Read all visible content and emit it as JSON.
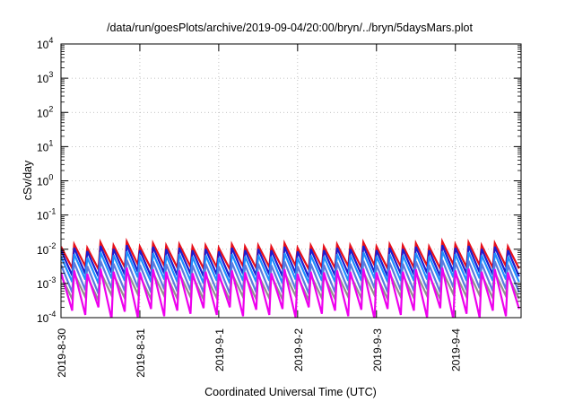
{
  "chart_data": {
    "type": "line",
    "title": "/data/run/goesPlots/archive/2019-09-04/20:00/bryn/../bryn/5daysMars.plot",
    "xlabel": "Coordinated Universal Time (UTC)",
    "ylabel": "cSv/day",
    "yscale": "log",
    "ylim": [
      0.0001,
      10000
    ],
    "y_ticks": [
      {
        "base": "10",
        "exp": "-4",
        "value": 0.0001
      },
      {
        "base": "10",
        "exp": "-3",
        "value": 0.001
      },
      {
        "base": "10",
        "exp": "-2",
        "value": 0.01
      },
      {
        "base": "10",
        "exp": "-1",
        "value": 0.1
      },
      {
        "base": "10",
        "exp": "0",
        "value": 1
      },
      {
        "base": "10",
        "exp": "1",
        "value": 10
      },
      {
        "base": "10",
        "exp": "2",
        "value": 100
      },
      {
        "base": "10",
        "exp": "3",
        "value": 1000
      },
      {
        "base": "10",
        "exp": "4",
        "value": 10000
      }
    ],
    "x_ticks": [
      "2019-8-30",
      "2019-8-31",
      "2019-9-1",
      "2019-9-2",
      "2019-9-3",
      "2019-9-4"
    ],
    "xlim": [
      "2019-08-30 00:00",
      "2019-09-04 20:00"
    ],
    "x_tick_times": [
      "2019-08-30",
      "2019-08-31",
      "2019-09-01",
      "2019-09-02",
      "2019-09-03",
      "2019-09-04"
    ],
    "grid": true,
    "sawtooth_period_hours": 4,
    "series": [
      {
        "color": "#e8101a",
        "peaks": [
          0.012,
          0.014,
          0.011,
          0.016,
          0.013,
          0.017,
          0.012,
          0.015,
          0.013,
          0.014,
          0.012,
          0.013,
          0.011,
          0.014,
          0.012,
          0.013,
          0.012,
          0.015,
          0.011,
          0.013,
          0.012,
          0.014,
          0.013,
          0.016,
          0.012,
          0.014,
          0.013,
          0.015,
          0.012,
          0.017,
          0.014,
          0.016,
          0.013,
          0.015,
          0.012
        ],
        "troughs": [
          0.0028,
          0.0032,
          0.0026,
          0.0035,
          0.003,
          0.0036,
          0.0027,
          0.0033,
          0.0029,
          0.0031,
          0.0027,
          0.003,
          0.0026,
          0.0032,
          0.0028,
          0.003,
          0.0027,
          0.0033,
          0.0026,
          0.003,
          0.0028,
          0.0032,
          0.0029,
          0.0034,
          0.0027,
          0.0031,
          0.0029,
          0.0033,
          0.0027,
          0.0036,
          0.003,
          0.0034,
          0.0029,
          0.0032,
          0.0027
        ]
      },
      {
        "color": "#1c1cd0",
        "peaks": [
          0.0095,
          0.011,
          0.0088,
          0.0125,
          0.0102,
          0.0132,
          0.0094,
          0.0118,
          0.0101,
          0.011,
          0.0093,
          0.0102,
          0.0086,
          0.011,
          0.0094,
          0.0102,
          0.0093,
          0.0118,
          0.0086,
          0.0102,
          0.0094,
          0.011,
          0.0102,
          0.0125,
          0.0094,
          0.011,
          0.0102,
          0.0118,
          0.0094,
          0.0132,
          0.011,
          0.0125,
          0.0102,
          0.0118,
          0.0094
        ],
        "troughs": [
          0.0017,
          0.0019,
          0.0016,
          0.0021,
          0.0018,
          0.0022,
          0.0016,
          0.002,
          0.0017,
          0.0019,
          0.0016,
          0.0018,
          0.0015,
          0.0019,
          0.0017,
          0.0018,
          0.0016,
          0.002,
          0.0015,
          0.0018,
          0.0017,
          0.0019,
          0.0018,
          0.0021,
          0.0016,
          0.0019,
          0.0018,
          0.002,
          0.0016,
          0.0022,
          0.0019,
          0.0021,
          0.0018,
          0.002,
          0.0016
        ]
      },
      {
        "color": "#1e90ff",
        "peaks": [
          0.0062,
          0.0072,
          0.0057,
          0.0082,
          0.0067,
          0.0087,
          0.0062,
          0.0077,
          0.0066,
          0.0072,
          0.0061,
          0.0067,
          0.0056,
          0.0072,
          0.0062,
          0.0067,
          0.0061,
          0.0077,
          0.0056,
          0.0067,
          0.0062,
          0.0072,
          0.0067,
          0.0082,
          0.0062,
          0.0072,
          0.0067,
          0.0077,
          0.0062,
          0.0087,
          0.0072,
          0.0082,
          0.0067,
          0.0077,
          0.0062
        ],
        "troughs": [
          0.0011,
          0.0013,
          0.001,
          0.0014,
          0.0012,
          0.0015,
          0.0011,
          0.0013,
          0.0011,
          0.0012,
          0.001,
          0.0012,
          0.001,
          0.0012,
          0.0011,
          0.0012,
          0.001,
          0.0013,
          0.001,
          0.0012,
          0.0011,
          0.0012,
          0.0012,
          0.0014,
          0.0011,
          0.0012,
          0.0012,
          0.0013,
          0.0011,
          0.0015,
          0.0012,
          0.0014,
          0.0012,
          0.0013,
          0.0011
        ]
      },
      {
        "color": "#5a7be0",
        "peaks": [
          0.0035,
          0.0041,
          0.0032,
          0.0046,
          0.0038,
          0.0049,
          0.0035,
          0.0044,
          0.0037,
          0.0041,
          0.0034,
          0.0038,
          0.0032,
          0.0041,
          0.0035,
          0.0038,
          0.0034,
          0.0044,
          0.0032,
          0.0038,
          0.0035,
          0.0041,
          0.0038,
          0.0046,
          0.0035,
          0.0041,
          0.0038,
          0.0044,
          0.0035,
          0.0049,
          0.0041,
          0.0046,
          0.0038,
          0.0044,
          0.0035
        ],
        "troughs": [
          0.00055,
          0.00064,
          0.0005,
          0.00072,
          0.0006,
          0.00076,
          0.00055,
          0.00068,
          0.00058,
          0.00064,
          0.00054,
          0.0006,
          0.0005,
          0.00064,
          0.00055,
          0.0006,
          0.00054,
          0.00068,
          0.0005,
          0.0006,
          0.00055,
          0.00064,
          0.0006,
          0.00072,
          0.00055,
          0.00064,
          0.0006,
          0.00068,
          0.00055,
          0.00076,
          0.00064,
          0.00072,
          0.0006,
          0.00068,
          0.00055
        ]
      },
      {
        "color": "#909090",
        "peaks": [
          0.0017,
          0.002,
          0.0016,
          0.0022,
          0.0018,
          0.0024,
          0.0017,
          0.0021,
          0.0018,
          0.002,
          0.0017,
          0.0018,
          0.0016,
          0.002,
          0.0017,
          0.0018,
          0.0017,
          0.0021,
          0.0016,
          0.0018,
          0.0017,
          0.002,
          0.0018,
          0.0022,
          0.0017,
          0.002,
          0.0018,
          0.0021,
          0.0017,
          0.0024,
          0.002,
          0.0022,
          0.0018,
          0.0021,
          0.0017
        ],
        "troughs": [
          0.00035,
          0.0004,
          0.00032,
          0.00045,
          0.00037,
          0.00048,
          0.00035,
          0.00043,
          0.00036,
          0.0004,
          0.00034,
          0.00037,
          0.00032,
          0.0004,
          0.00035,
          0.00037,
          0.00034,
          0.00043,
          0.00032,
          0.00037,
          0.00035,
          0.0004,
          0.00037,
          0.00045,
          0.00035,
          0.0004,
          0.00037,
          0.00043,
          0.00035,
          0.00048,
          0.0004,
          0.00045,
          0.00037,
          0.00043,
          0.00035
        ]
      },
      {
        "color": "#ee00ee",
        "peaks": [
          0.0021,
          0.0024,
          0.0019,
          0.0027,
          0.0022,
          0.0029,
          0.0021,
          0.0026,
          0.0022,
          0.0024,
          0.002,
          0.0022,
          0.0019,
          0.0024,
          0.0021,
          0.0022,
          0.002,
          0.0026,
          0.0019,
          0.0022,
          0.0021,
          0.0024,
          0.0022,
          0.0027,
          0.0021,
          0.0024,
          0.0022,
          0.0026,
          0.0021,
          0.0029,
          0.0024,
          0.0027,
          0.0022,
          0.0026,
          0.0021
        ],
        "troughs": [
          0.00016,
          0.00012,
          0.0002,
          9e-05,
          0.00015,
          0.0001,
          0.00018,
          0.00011,
          0.00016,
          0.00013,
          0.00019,
          0.00012,
          0.0002,
          0.00011,
          0.00017,
          0.00012,
          0.00018,
          0.0001,
          0.0002,
          0.00013,
          0.00016,
          0.00011,
          0.00017,
          9e-05,
          0.00018,
          0.00012,
          0.00016,
          0.0001,
          0.00019,
          9e-05,
          0.00013,
          0.0001,
          0.00016,
          0.00011,
          0.00018
        ]
      }
    ]
  }
}
